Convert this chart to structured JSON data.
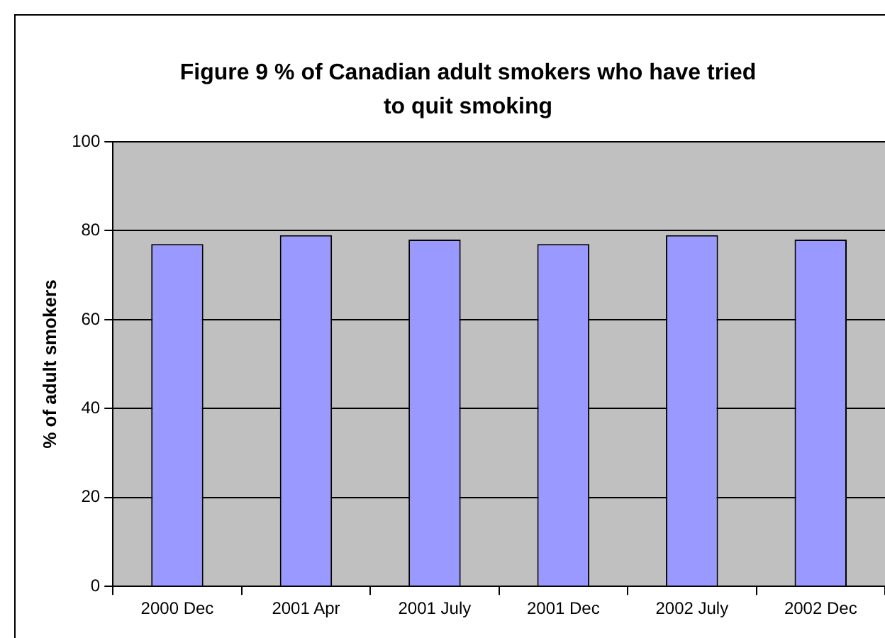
{
  "chart_data": {
    "type": "bar",
    "title": "Figure 9 % of Canadian adult smokers who have tried to quit smoking",
    "ylabel": "% of adult smokers",
    "categories": [
      "2000 Dec",
      "2001 Apr",
      "2001 July",
      "2001 Dec",
      "2002 July",
      "2002 Dec"
    ],
    "values": [
      77,
      79,
      78,
      77,
      79,
      78
    ],
    "color": "#9999ff",
    "ylim": [
      0,
      100
    ],
    "yticks": [
      0,
      20,
      40,
      60,
      80,
      100
    ],
    "grid": "y",
    "legend": false
  }
}
